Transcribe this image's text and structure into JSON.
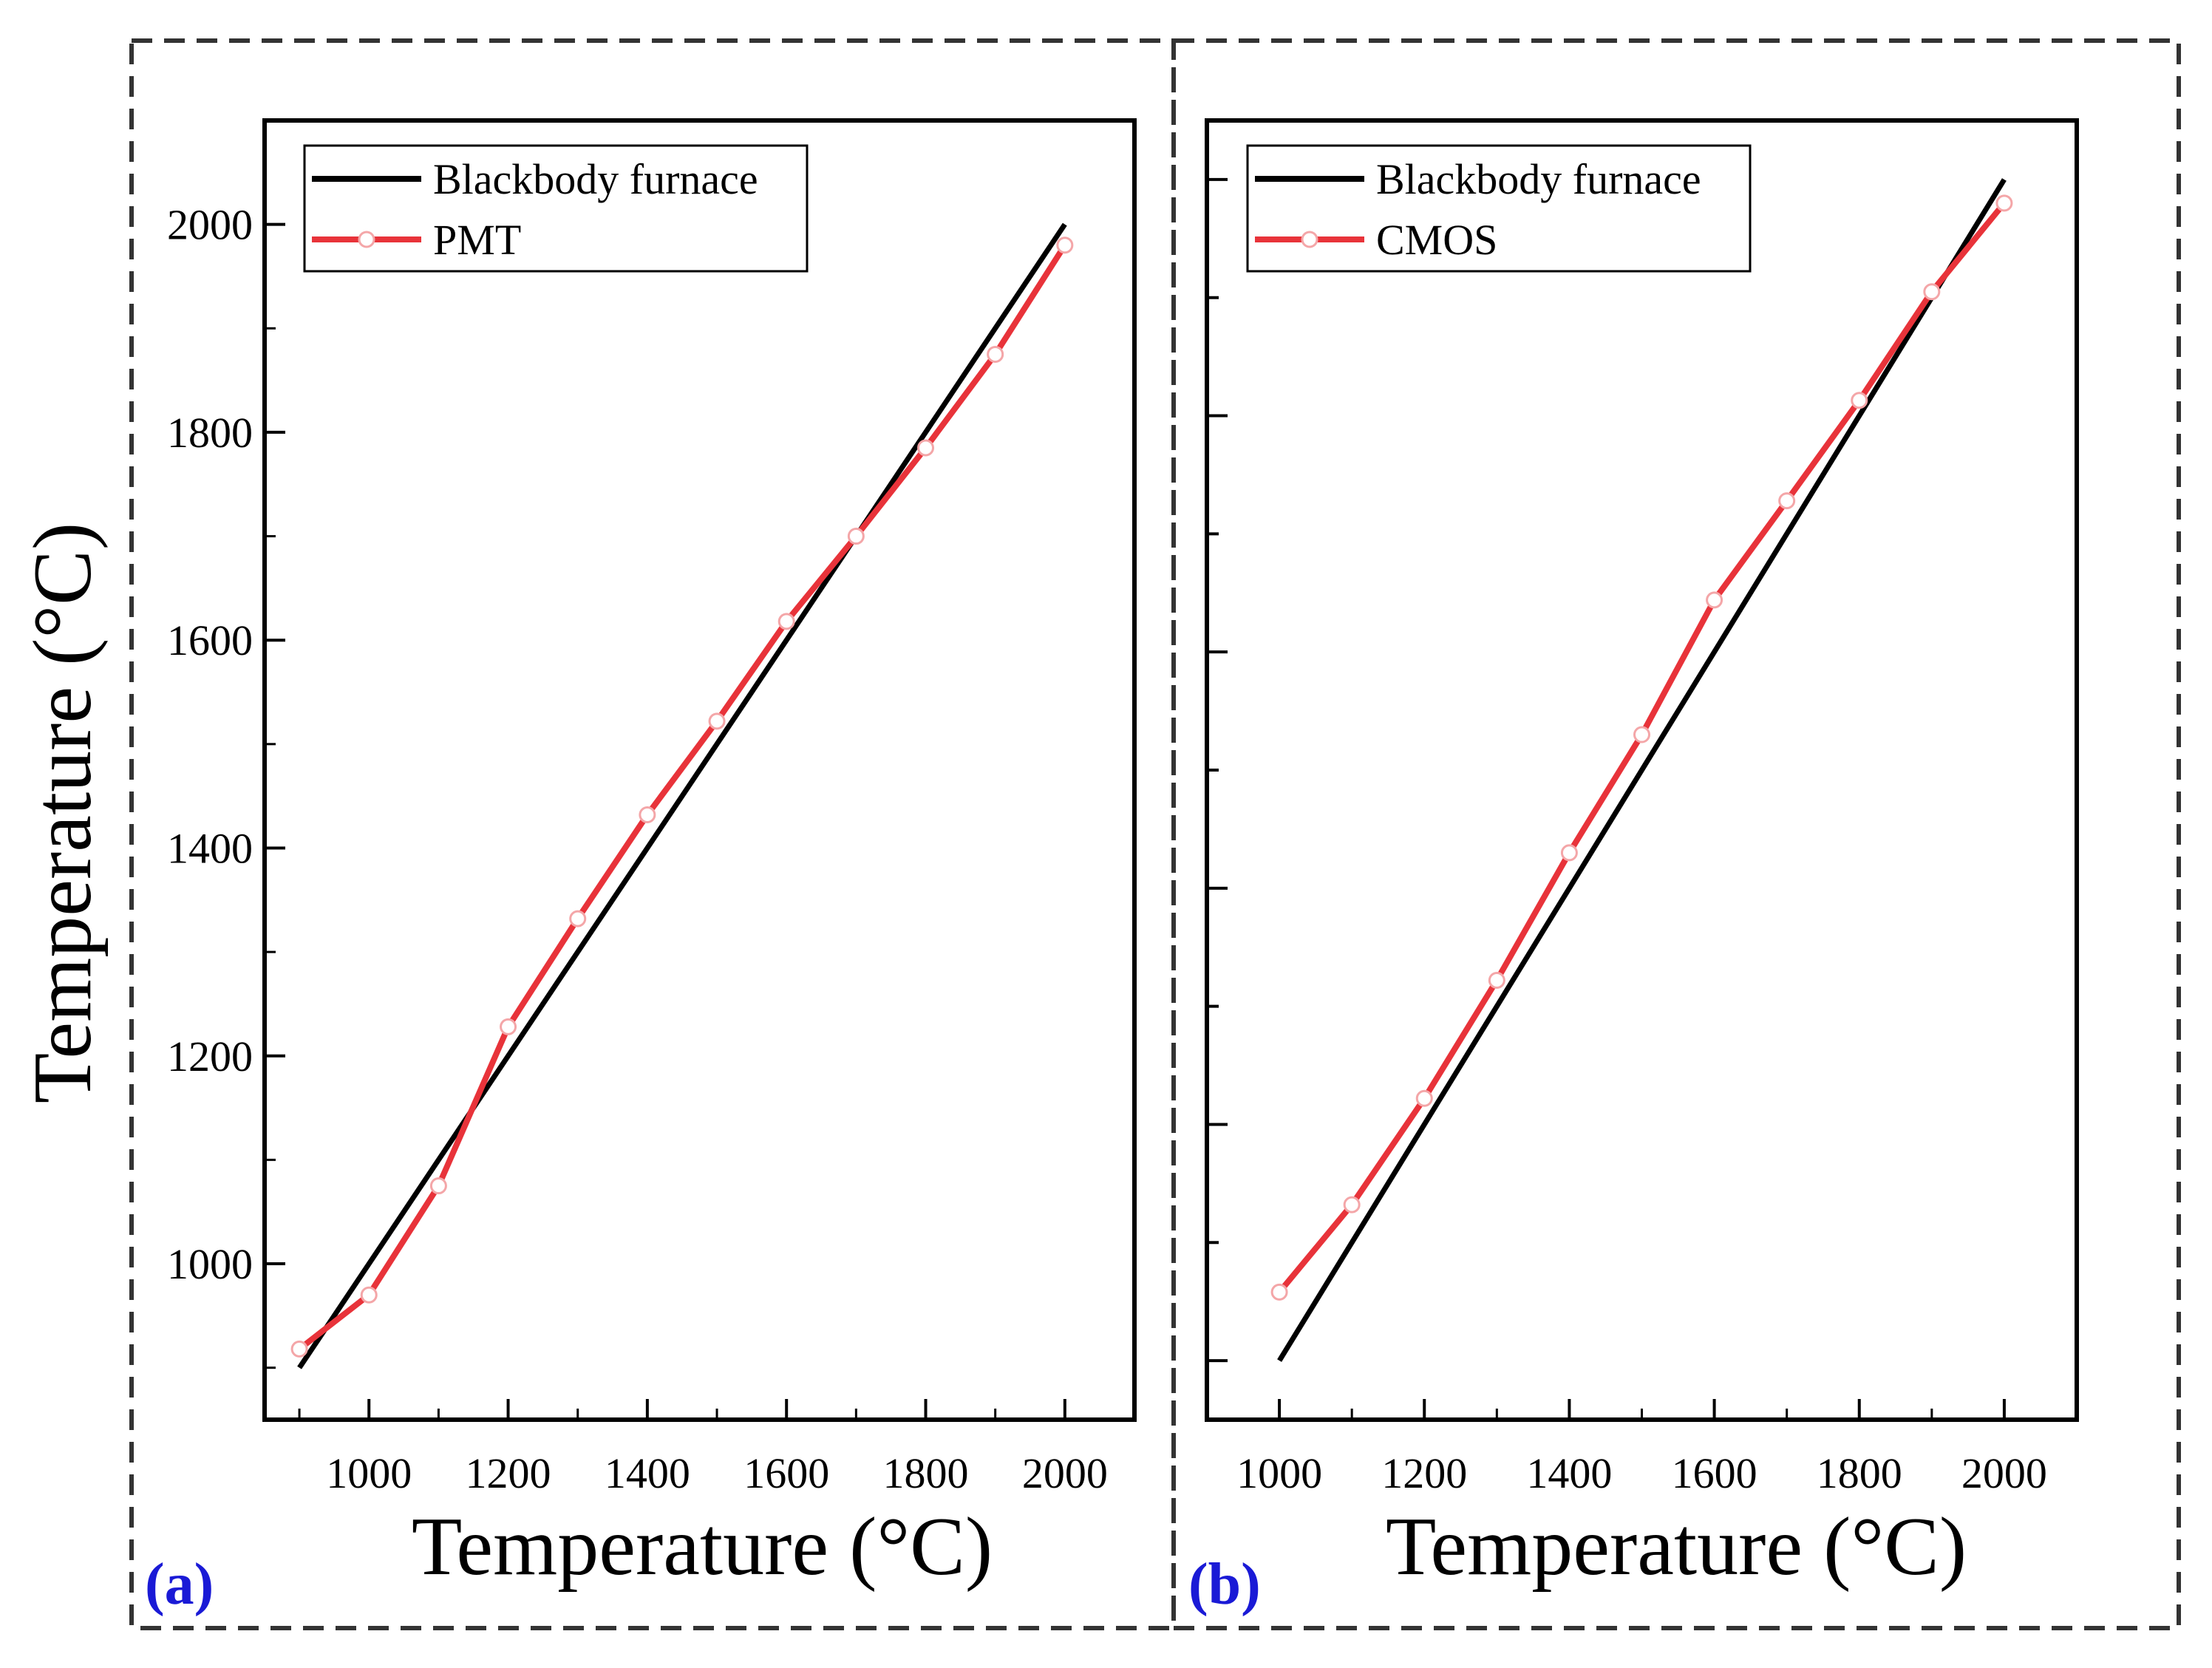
{
  "chart_data": [
    {
      "type": "line",
      "panel_label": "(a)",
      "xlabel": "Temperature (°C)",
      "ylabel": "Temperature (°C)",
      "xlim": [
        850,
        2100
      ],
      "ylim": [
        850,
        2100
      ],
      "x_ticks": [
        1000,
        1200,
        1400,
        1600,
        1800,
        2000
      ],
      "y_ticks": [
        1000,
        1200,
        1400,
        1600,
        1800,
        2000
      ],
      "y_tick_labels_shown": true,
      "legend_position": "top-left",
      "series": [
        {
          "name": "Blackbody furnace",
          "color": "#000000",
          "marker": "none",
          "x": [
            900,
            2000
          ],
          "y": [
            900,
            2000
          ]
        },
        {
          "name": "PMT",
          "color": "#e8333a",
          "marker": "open-circle",
          "x": [
            900,
            1000,
            1100,
            1200,
            1300,
            1400,
            1500,
            1600,
            1700,
            1800,
            1900,
            2000
          ],
          "y": [
            918,
            970,
            1075,
            1228,
            1332,
            1432,
            1522,
            1618,
            1700,
            1785,
            1875,
            1980
          ]
        }
      ]
    },
    {
      "type": "line",
      "panel_label": "(b)",
      "xlabel": "Temperature (°C)",
      "ylabel": "",
      "xlim": [
        900,
        2100
      ],
      "ylim": [
        950,
        2050
      ],
      "x_ticks": [
        1000,
        1200,
        1400,
        1600,
        1800,
        2000
      ],
      "y_ticks": [
        1000,
        1100,
        1200,
        1300,
        1400,
        1500,
        1600,
        1700,
        1800,
        1900,
        2000
      ],
      "y_tick_labels_shown": false,
      "legend_position": "top-left",
      "series": [
        {
          "name": "Blackbody furnace",
          "color": "#000000",
          "marker": "none",
          "x": [
            1000,
            2000
          ],
          "y": [
            1000,
            2000
          ]
        },
        {
          "name": "CMOS",
          "color": "#e8333a",
          "marker": "open-circle",
          "x": [
            1000,
            1100,
            1200,
            1300,
            1400,
            1500,
            1600,
            1700,
            1800,
            1900,
            2000
          ],
          "y": [
            1058,
            1132,
            1222,
            1322,
            1430,
            1530,
            1644,
            1728,
            1813,
            1905,
            1980
          ]
        }
      ]
    }
  ]
}
